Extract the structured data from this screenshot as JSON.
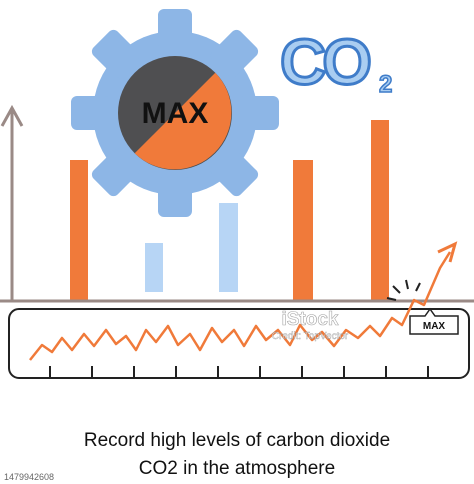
{
  "illustration": {
    "gear_label": "MAX",
    "co2_label": {
      "main": "CO",
      "subscript": "2"
    },
    "peak_label": "MAX"
  },
  "caption": {
    "line1": "Record high levels of carbon dioxide",
    "line2": "CO2 in the atmosphere"
  },
  "watermark": {
    "brand": "iStock",
    "credit": "Credit: TopVector"
  },
  "image_id": "1479942608"
}
